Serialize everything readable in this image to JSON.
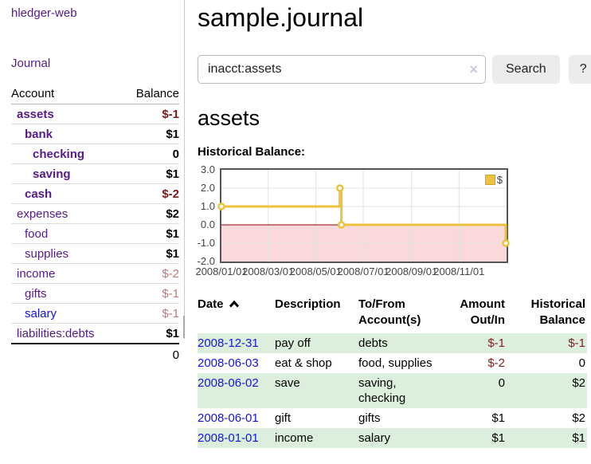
{
  "app": {
    "title": "hledger-web"
  },
  "sidebar": {
    "journal_link": "Journal",
    "accounts": {
      "col_account": "Account",
      "col_balance": "Balance",
      "rows": [
        {
          "name": "assets",
          "balance": "$-1"
        },
        {
          "name": "bank",
          "balance": "$1"
        },
        {
          "name": "checking",
          "balance": "0"
        },
        {
          "name": "saving",
          "balance": "$1"
        },
        {
          "name": "cash",
          "balance": "$-2"
        },
        {
          "name": "expenses",
          "balance": "$2"
        },
        {
          "name": "food",
          "balance": "$1"
        },
        {
          "name": "supplies",
          "balance": "$1"
        },
        {
          "name": "income",
          "balance": "$-2"
        },
        {
          "name": "gifts",
          "balance": "$-1"
        },
        {
          "name": "salary",
          "balance": "$-1"
        },
        {
          "name": "liabilities:debts",
          "balance": "$1"
        }
      ],
      "total": "0"
    }
  },
  "main": {
    "title": "sample.journal",
    "search": {
      "value": "inacct:assets",
      "clear": "×",
      "search_button": "Search",
      "help_button": "?"
    },
    "heading": "assets",
    "chart_title": "Historical Balance:"
  },
  "chart_data": {
    "type": "line",
    "step": true,
    "title": "Historical Balance",
    "series": [
      {
        "name": "$",
        "color": "#edc240",
        "points": [
          [
            "2008/01/01",
            1
          ],
          [
            "2008/06/01",
            2
          ],
          [
            "2008/06/03",
            0
          ],
          [
            "2008/12/31",
            -1
          ]
        ]
      }
    ],
    "x_range": [
      "2008/01/01",
      "2009/01/01"
    ],
    "x_ticks": [
      "2008/01/01",
      "2008/03/01",
      "2008/05/01",
      "2008/07/01",
      "2008/09/01",
      "2008/11/01"
    ],
    "y_ticks": [
      "3.0",
      "2.0",
      "1.0",
      "0.0",
      "-1.0",
      "-2.0"
    ],
    "ylim": [
      -2,
      3
    ],
    "grid": true,
    "legend": "$",
    "legend_position": "top-right",
    "negative_region_color": "#f9d9d9",
    "zero_line_color": "#990000"
  },
  "register": {
    "headers": {
      "date": "Date",
      "description": "Description",
      "accounts_l1": "To/From",
      "accounts_l2": "Account(s)",
      "amount_l1": "Amount",
      "amount_l2": "Out/In",
      "balance_l1": "Historical",
      "balance_l2": "Balance"
    },
    "rows": [
      {
        "date": "2008-12-31",
        "description": "pay off",
        "accounts": "debts",
        "amount": "$-1",
        "balance": "$-1"
      },
      {
        "date": "2008-06-03",
        "description": "eat & shop",
        "accounts": "food, supplies",
        "amount": "$-2",
        "balance": "0"
      },
      {
        "date": "2008-06-02",
        "description": "save",
        "accounts": "saving, checking",
        "amount": "0",
        "balance": "$2"
      },
      {
        "date": "2008-06-01",
        "description": "gift",
        "accounts": "gifts",
        "amount": "$1",
        "balance": "$2"
      },
      {
        "date": "2008-01-01",
        "description": "income",
        "accounts": "salary",
        "amount": "$1",
        "balance": "$1"
      }
    ]
  }
}
